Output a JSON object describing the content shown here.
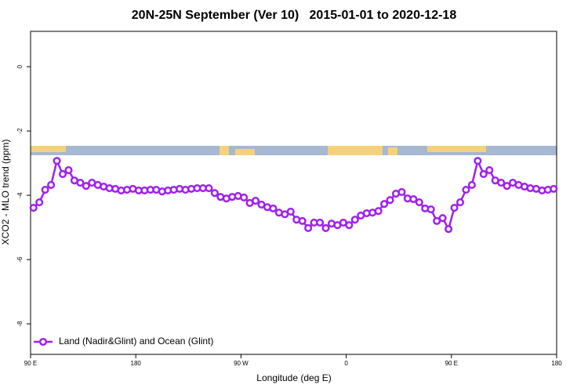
{
  "chart_data": {
    "type": "line",
    "title": "20N-25N September (Ver 10)   2015-01-01 to 2020-12-18",
    "x_label": "Longitude (deg E)",
    "y_label": "XCO2 - MLO trend (ppm)",
    "x": [
      92.5,
      97.5,
      102.5,
      107.5,
      112.5,
      117.5,
      122.5,
      127.5,
      132.5,
      137.5,
      142.5,
      147.5,
      152.5,
      157.5,
      162.5,
      167.5,
      172.5,
      177.5,
      182.5,
      187.5,
      192.5,
      197.5,
      202.5,
      207.5,
      212.5,
      217.5,
      222.5,
      227.5,
      232.5,
      237.5,
      242.5,
      247.5,
      252.5,
      257.5,
      262.5,
      267.5,
      272.5,
      277.5,
      282.5,
      287.5,
      292.5,
      297.5,
      302.5,
      307.5,
      312.5,
      317.5,
      322.5,
      327.5,
      332.5,
      337.5,
      342.5,
      347.5,
      352.5,
      357.5,
      362.5,
      367.5,
      372.5,
      377.5,
      382.5,
      387.5,
      392.5,
      397.5,
      402.5,
      407.5,
      412.5,
      417.5,
      422.5,
      427.5,
      432.5,
      437.5,
      442.5,
      447.5,
      452.5,
      457.5,
      462.5,
      467.5,
      472.5,
      477.5,
      482.5,
      487.5,
      492.5,
      497.5,
      502.5,
      507.5,
      512.5,
      517.5,
      522.5,
      527.5,
      532.5,
      537.5
    ],
    "series": [
      {
        "name": "Land (Nadir&Glint) and Ocean (Glint)",
        "color": "#a020f0",
        "values": [
          -4.39,
          -4.22,
          -3.83,
          -3.68,
          -2.93,
          -3.34,
          -3.22,
          -3.54,
          -3.61,
          -3.71,
          -3.61,
          -3.68,
          -3.73,
          -3.78,
          -3.8,
          -3.85,
          -3.83,
          -3.8,
          -3.85,
          -3.85,
          -3.83,
          -3.83,
          -3.88,
          -3.85,
          -3.83,
          -3.8,
          -3.83,
          -3.8,
          -3.78,
          -3.78,
          -3.78,
          -3.93,
          -4.05,
          -4.1,
          -4.05,
          -4.02,
          -4.07,
          -4.24,
          -4.17,
          -4.29,
          -4.37,
          -4.41,
          -4.54,
          -4.59,
          -4.51,
          -4.76,
          -4.8,
          -5.02,
          -4.85,
          -4.85,
          -5.02,
          -4.88,
          -4.93,
          -4.85,
          -4.93,
          -4.76,
          -4.63,
          -4.56,
          -4.54,
          -4.49,
          -4.27,
          -4.15,
          -3.95,
          -3.9,
          -4.1,
          -4.12,
          -4.22,
          -4.41,
          -4.44,
          -4.8,
          -4.71,
          -5.05,
          -4.39,
          -4.22,
          -3.83,
          -3.68,
          -2.93,
          -3.34,
          -3.22,
          -3.54,
          -3.61,
          -3.71,
          -3.61,
          -3.68,
          -3.73,
          -3.78,
          -3.8,
          -3.85,
          -3.83,
          -3.8
        ]
      }
    ],
    "xlim": [
      90,
      540
    ],
    "xticks": [
      {
        "value": 90,
        "label": "90 E"
      },
      180,
      {
        "value": 270,
        "label": "90 W"
      },
      {
        "value": 360,
        "label": "0"
      },
      {
        "value": 450,
        "label": "90 E"
      },
      {
        "value": 540,
        "label": "180"
      }
    ],
    "ylim": [
      -8.95,
      1.1
    ],
    "yticks": [
      0,
      -2,
      -4,
      -6,
      -8
    ],
    "legend": "bottom-left"
  }
}
